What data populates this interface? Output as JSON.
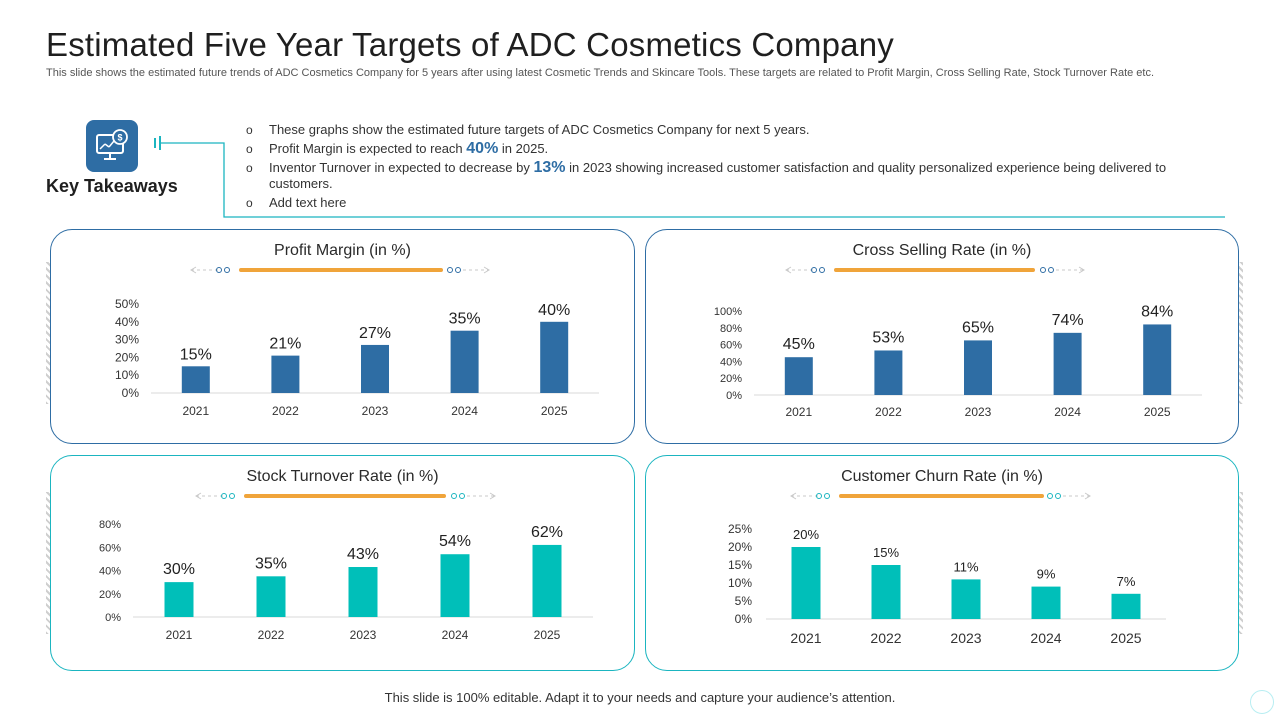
{
  "slide": {
    "title": "Estimated Five Year Targets of ADC Cosmetics Company",
    "subtitle": "This slide shows the estimated future trends of ADC Cosmetics Company  for 5 years after using latest Cosmetic Trends and Skincare Tools. These targets are related to Profit Margin, Cross Selling Rate, Stock Turnover Rate etc.",
    "footer": "This slide is 100% editable. Adapt it to your needs and capture your audience’s attention."
  },
  "takeaways": {
    "label": "Key Takeaways",
    "icon": "monitor-dollar-icon",
    "bullets": [
      {
        "pre": "These  graphs show the estimated future targets of ADC Cosmetics Company for next 5 years.",
        "highlight": "",
        "post": ""
      },
      {
        "pre": "Profit Margin is expected  to reach ",
        "highlight": "40%",
        "post": " in 2025."
      },
      {
        "pre": "Inventor Turnover in expected  to decrease  by ",
        "highlight": "13%",
        "post": " in 2023 showing increased customer satisfaction and quality personalized experience  being delivered to customers."
      },
      {
        "pre": "Add text here",
        "highlight": "",
        "post": ""
      }
    ]
  },
  "colors": {
    "accent_blue": "#2e6da4",
    "accent_teal": "#1bb5c0",
    "bar_teal": "#00bfb9",
    "deco_orange": "#f0a43a"
  },
  "chart_data": [
    {
      "type": "bar",
      "title": "Profit Margin (in %)",
      "categories": [
        "2021",
        "2022",
        "2023",
        "2024",
        "2025"
      ],
      "values": [
        15,
        21,
        27,
        35,
        40
      ],
      "value_labels": [
        "15%",
        "21%",
        "27%",
        "35%",
        "40%"
      ],
      "y_ticks": [
        "0%",
        "10%",
        "20%",
        "30%",
        "40%",
        "50%"
      ],
      "ylim": [
        0,
        50
      ],
      "color": "#2e6da4"
    },
    {
      "type": "bar",
      "title": "Cross Selling Rate (in %)",
      "categories": [
        "2021",
        "2022",
        "2023",
        "2024",
        "2025"
      ],
      "values": [
        45,
        53,
        65,
        74,
        84
      ],
      "value_labels": [
        "45%",
        "53%",
        "65%",
        "74%",
        "84%"
      ],
      "y_ticks": [
        "0%",
        "20%",
        "40%",
        "60%",
        "80%",
        "100%"
      ],
      "ylim": [
        0,
        100
      ],
      "color": "#2e6da4"
    },
    {
      "type": "bar",
      "title": "Stock Turnover Rate (in %)",
      "categories": [
        "2021",
        "2022",
        "2023",
        "2024",
        "2025"
      ],
      "values": [
        30,
        35,
        43,
        54,
        62
      ],
      "value_labels": [
        "30%",
        "35%",
        "43%",
        "54%",
        "62%"
      ],
      "y_ticks": [
        "0%",
        "20%",
        "40%",
        "60%",
        "80%"
      ],
      "ylim": [
        0,
        80
      ],
      "color": "#00bfb9"
    },
    {
      "type": "bar",
      "title": "Customer Churn Rate (in %)",
      "categories": [
        "2021",
        "2022",
        "2023",
        "2024",
        "2025"
      ],
      "values": [
        20,
        15,
        11,
        9,
        7
      ],
      "value_labels": [
        "20%",
        "15%",
        "11%",
        "9%",
        "7%"
      ],
      "y_ticks": [
        "0%",
        "5%",
        "10%",
        "15%",
        "20%",
        "25%"
      ],
      "ylim": [
        0,
        25
      ],
      "color": "#00bfb9"
    }
  ]
}
